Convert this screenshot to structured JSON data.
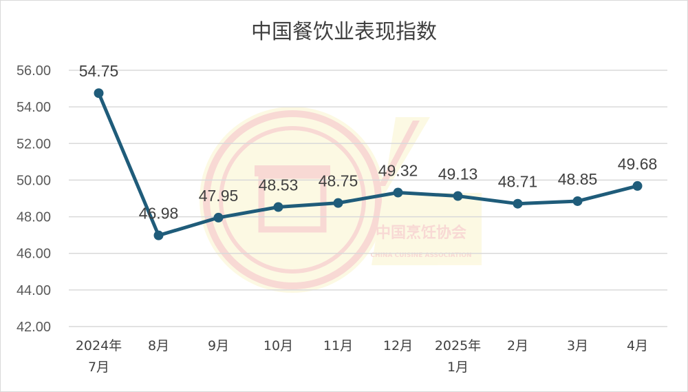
{
  "chart_data": {
    "type": "line",
    "title": "中国餐饮业表现指数",
    "categories": [
      [
        "2024年",
        "7月"
      ],
      [
        "8月"
      ],
      [
        "9月"
      ],
      [
        "10月"
      ],
      [
        "11月"
      ],
      [
        "12月"
      ],
      [
        "2025年",
        "1月"
      ],
      [
        "2月"
      ],
      [
        "3月"
      ],
      [
        "4月"
      ]
    ],
    "series": [
      {
        "values": [
          54.75,
          46.98,
          47.95,
          48.53,
          48.75,
          49.32,
          49.13,
          48.71,
          48.85,
          49.68
        ]
      }
    ],
    "data_labels": [
      "54.75",
      "46.98",
      "47.95",
      "48.53",
      "48.75",
      "49.32",
      "49.13",
      "48.71",
      "48.85",
      "49.68"
    ],
    "ylim": [
      42,
      56
    ],
    "yticks": [
      "42.00",
      "44.00",
      "46.00",
      "48.00",
      "50.00",
      "52.00",
      "54.00",
      "56.00"
    ],
    "grid": true,
    "line_color": "#1f5c7a",
    "watermark": {
      "text_cn": "中国烹饪协会",
      "text_en": "CHINA CUISINE ASSOCIATION"
    }
  }
}
